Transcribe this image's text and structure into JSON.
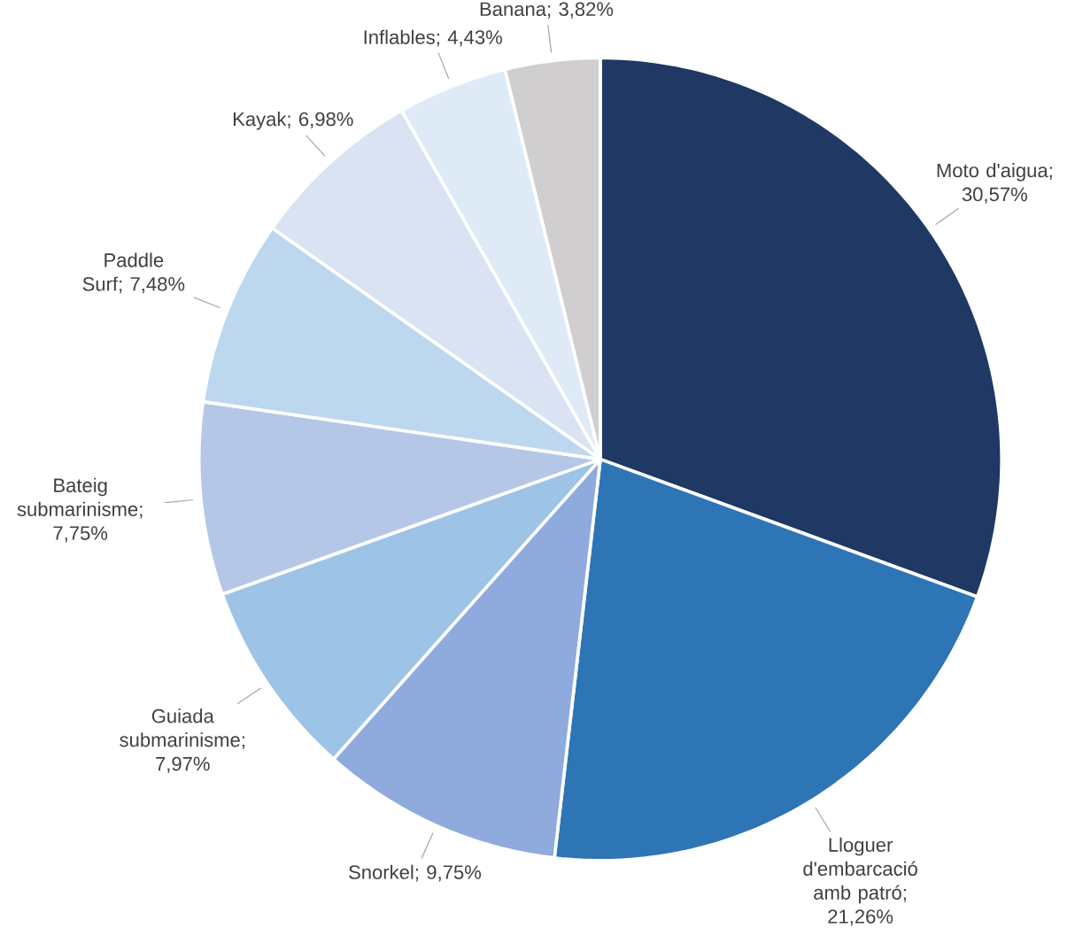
{
  "chart_data": {
    "type": "pie",
    "categories": [
      "Moto d'aigua",
      "Lloguer d'embarcació amb patró",
      "Snorkel",
      "Guiada submarinisme",
      "Bateig submarinisme",
      "Paddle Surf",
      "Kayak",
      "Inflables",
      "Banana"
    ],
    "values": [
      30.57,
      21.26,
      9.75,
      7.97,
      7.75,
      7.48,
      6.98,
      4.43,
      3.82
    ],
    "value_labels": [
      "; 30,57%",
      "; 21,26%",
      "; 9,75%",
      "; 7,97%",
      "; 7,75%",
      "; 7,48%",
      "; 6,98%",
      "; 4,43%",
      "; 3,82%"
    ],
    "colors": [
      "#1f3864",
      "#2e75b6",
      "#8faadc",
      "#9dc3e6",
      "#b4c7e7",
      "#bdd7ee",
      "#dae3f3",
      "#deebf7",
      "#d0cece"
    ]
  }
}
